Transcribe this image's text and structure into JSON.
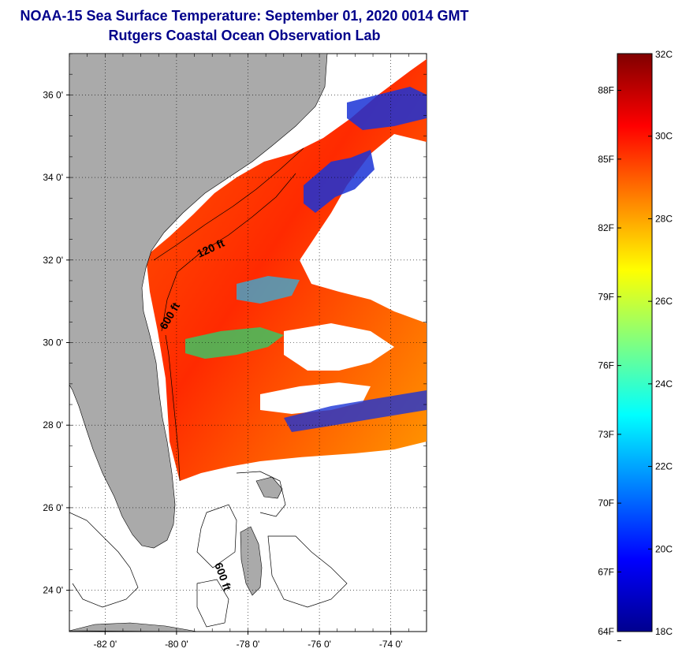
{
  "title": "NOAA-15 Sea Surface Temperature:  September 01, 2020 0014 GMT",
  "subtitle": "Rutgers Coastal Ocean Observation Lab",
  "map": {
    "lon_range": [
      -83,
      -73
    ],
    "lat_range": [
      23,
      37
    ],
    "lat_ticks": [
      {
        "value": 36,
        "label": "36 0'"
      },
      {
        "value": 34,
        "label": "34 0'"
      },
      {
        "value": 32,
        "label": "32 0'"
      },
      {
        "value": 30,
        "label": "30 0'"
      },
      {
        "value": 28,
        "label": "28 0'"
      },
      {
        "value": 26,
        "label": "26 0'"
      },
      {
        "value": 24,
        "label": "24 0'"
      }
    ],
    "lon_ticks": [
      {
        "value": -82,
        "label": "-82 0'"
      },
      {
        "value": -80,
        "label": "-80 0'"
      },
      {
        "value": -78,
        "label": "-78 0'"
      },
      {
        "value": -76,
        "label": "-76 0'"
      },
      {
        "value": -74,
        "label": "-74 0'"
      }
    ],
    "grid": "dotted",
    "land_color": "#aaaaaa",
    "contour_labels": [
      {
        "text": "120 ft",
        "lon": -79.0,
        "lat": 32.2
      },
      {
        "text": "600 ft",
        "lon": -80.1,
        "lat": 30.6
      },
      {
        "text": "600 ft",
        "lon": -78.8,
        "lat": 24.3
      }
    ]
  },
  "colorbar": {
    "min_c": 18,
    "max_c": 32,
    "celsius_ticks": [
      {
        "value": 32,
        "label": "32C"
      },
      {
        "value": 30,
        "label": "30C"
      },
      {
        "value": 28,
        "label": "28C"
      },
      {
        "value": 26,
        "label": "26C"
      },
      {
        "value": 24,
        "label": "24C"
      },
      {
        "value": 22,
        "label": "22C"
      },
      {
        "value": 20,
        "label": "20C"
      },
      {
        "value": 18,
        "label": "18C"
      }
    ],
    "fahrenheit_ticks": [
      {
        "value": 88,
        "label": "88F"
      },
      {
        "value": 85,
        "label": "85F"
      },
      {
        "value": 82,
        "label": "82F"
      },
      {
        "value": 79,
        "label": "79F"
      },
      {
        "value": 76,
        "label": "76F"
      },
      {
        "value": 73,
        "label": "73F"
      },
      {
        "value": 70,
        "label": "70F"
      },
      {
        "value": 67,
        "label": "67F"
      },
      {
        "value": 64,
        "label": "64F"
      }
    ],
    "colors": [
      "#00008f",
      "#0000ff",
      "#0080ff",
      "#00ffff",
      "#80ff80",
      "#ffff00",
      "#ff8000",
      "#ff0000",
      "#800000"
    ]
  }
}
